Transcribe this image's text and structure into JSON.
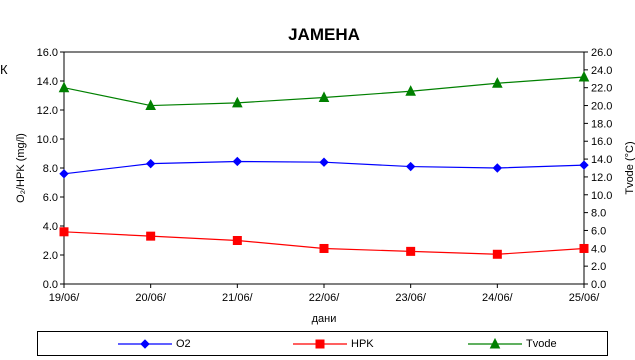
{
  "edge_text": "К",
  "chart_data": {
    "type": "line",
    "title": "ЈАМЕНА",
    "xlabel": "дани",
    "ylabel_left": "O₂/HPK (mg/l)",
    "ylabel_right": "Tvode (°C)",
    "x": [
      "19/06/",
      "20/06/",
      "21/06/",
      "22/06/",
      "23/06/",
      "24/06/",
      "25/06/"
    ],
    "ylim_left": [
      0,
      16
    ],
    "yticks_left": [
      "0.0",
      "2.0",
      "4.0",
      "6.0",
      "8.0",
      "10.0",
      "12.0",
      "14.0",
      "16.0"
    ],
    "ylim_right": [
      0,
      26
    ],
    "yticks_right": [
      "0.0",
      "2.0",
      "4.0",
      "6.0",
      "8.0",
      "10.0",
      "12.0",
      "14.0",
      "16.0",
      "18.0",
      "20.0",
      "22.0",
      "24.0",
      "26.0"
    ],
    "grid": false,
    "legend": "bottom",
    "series": [
      {
        "name": "O2",
        "axis": "left",
        "marker": "diamond",
        "color": "#0000ff",
        "values": [
          7.6,
          8.3,
          8.45,
          8.4,
          8.1,
          8.0,
          8.2
        ]
      },
      {
        "name": "HPK",
        "axis": "left",
        "marker": "square",
        "color": "#ff0000",
        "values": [
          3.6,
          3.3,
          3.0,
          2.45,
          2.25,
          2.05,
          2.45
        ]
      },
      {
        "name": "Tvode",
        "axis": "right",
        "marker": "triangle",
        "color": "#008000",
        "values": [
          22.0,
          20.0,
          20.3,
          20.9,
          21.6,
          22.5,
          23.2
        ]
      }
    ]
  }
}
